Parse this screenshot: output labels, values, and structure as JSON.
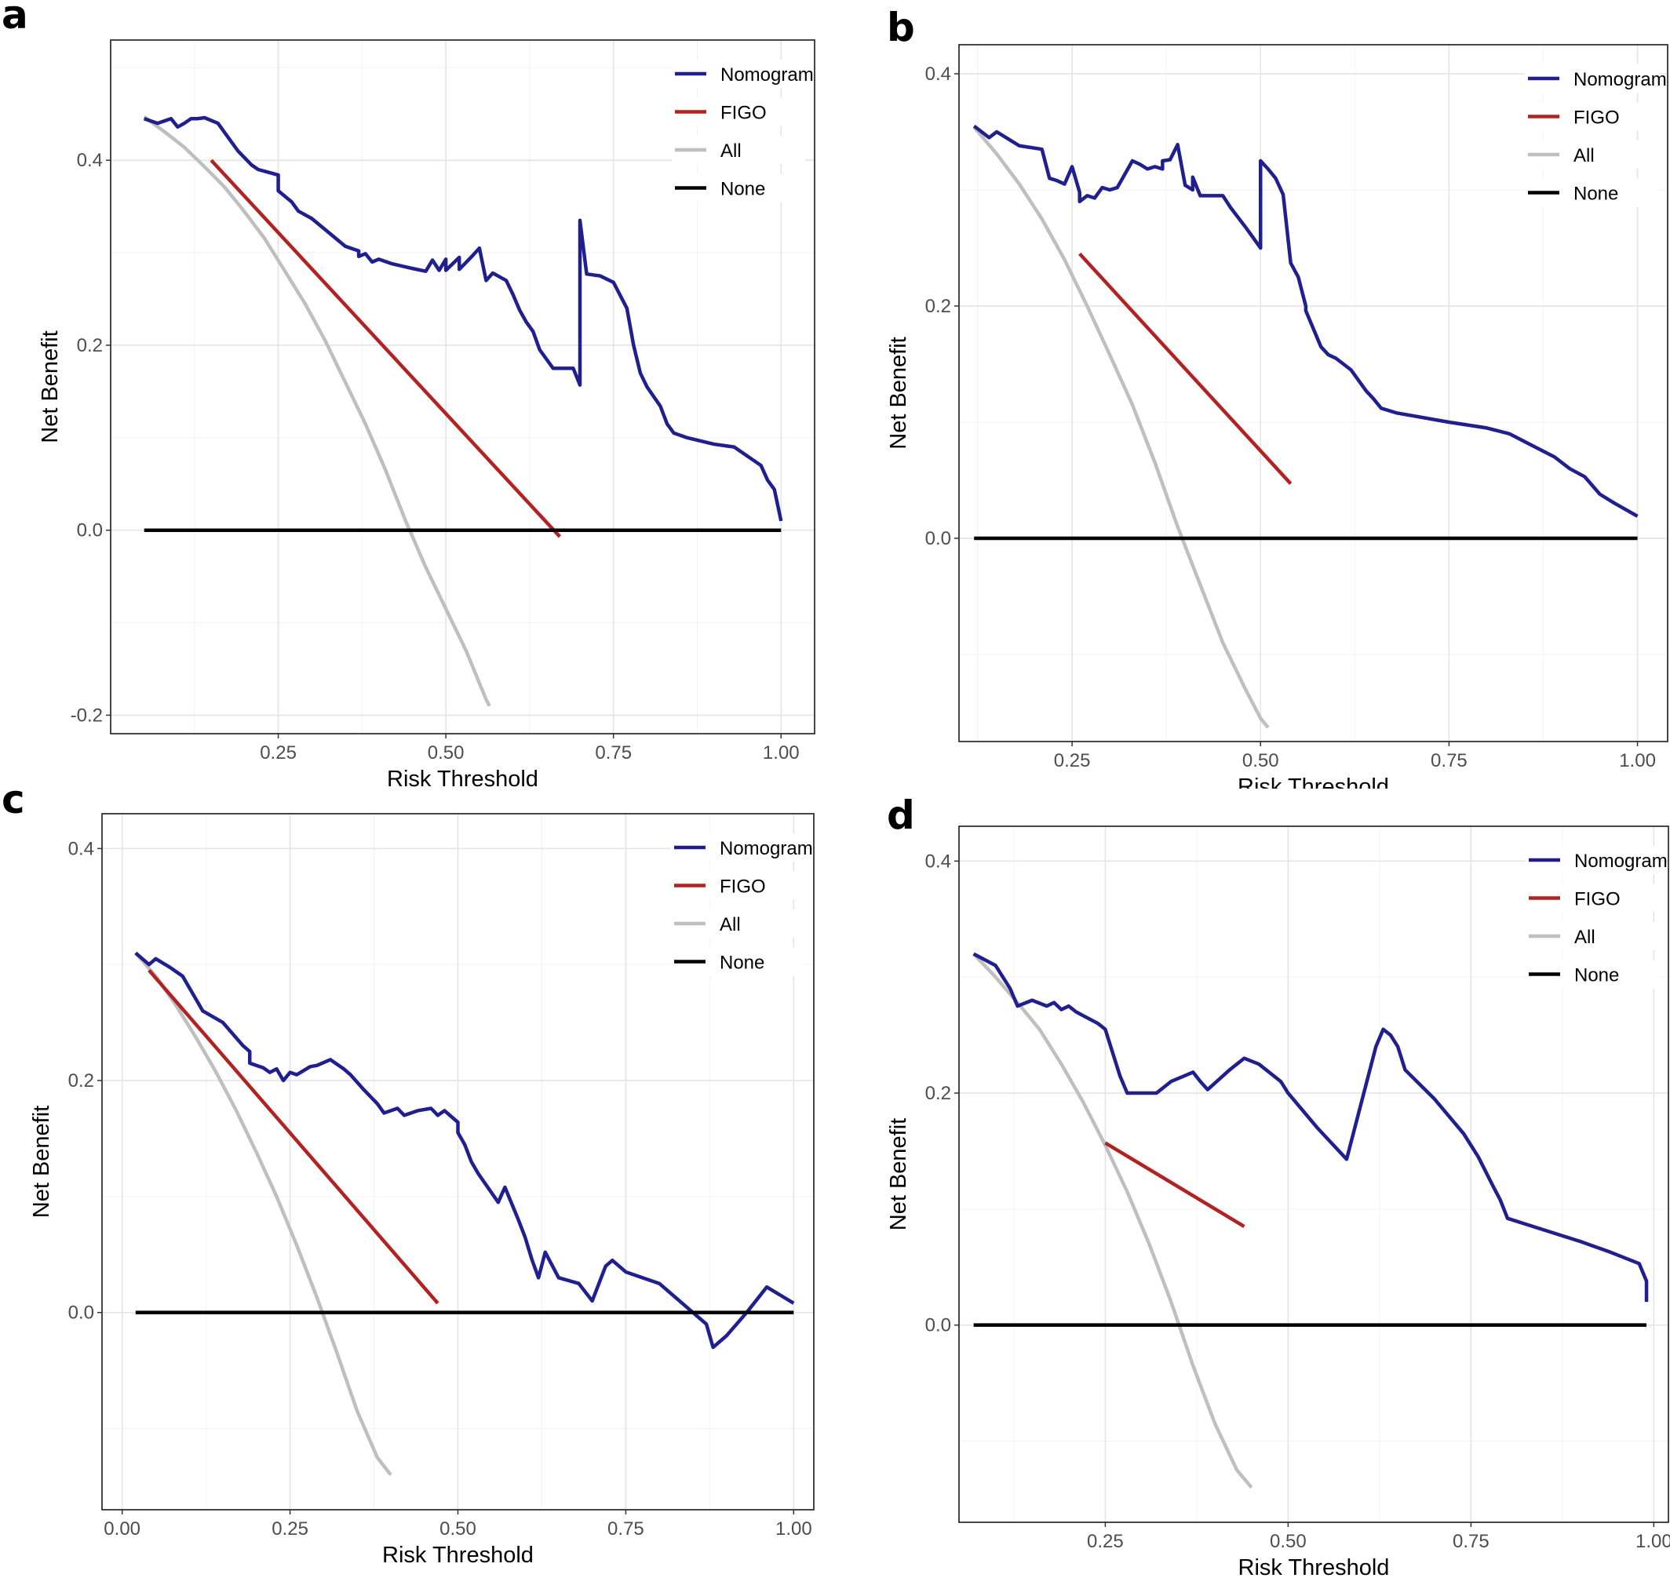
{
  "chart_data": [
    {
      "panel": "a",
      "type": "line",
      "xlabel": "Risk Threshold",
      "ylabel": "Net Benefit",
      "xlim": [
        0.0,
        1.05
      ],
      "ylim": [
        -0.22,
        0.53
      ],
      "xticks": [
        0.25,
        0.5,
        0.75,
        1.0
      ],
      "xtick_labels": [
        "0.25",
        "0.50",
        "0.75",
        "1.00"
      ],
      "yticks": [
        -0.2,
        0.0,
        0.2,
        0.4
      ],
      "ytick_labels": [
        "-0.2",
        "0.0",
        "0.2",
        "0.4"
      ],
      "legend_position": "top-right",
      "series": [
        {
          "name": "Nomogram",
          "color": "#1f1f8f",
          "x": [
            0.05,
            0.07,
            0.09,
            0.1,
            0.11,
            0.12,
            0.13,
            0.14,
            0.16,
            0.18,
            0.19,
            0.21,
            0.22,
            0.24,
            0.25,
            0.25,
            0.27,
            0.28,
            0.3,
            0.32,
            0.35,
            0.37,
            0.37,
            0.38,
            0.39,
            0.4,
            0.42,
            0.45,
            0.47,
            0.48,
            0.49,
            0.5,
            0.5,
            0.52,
            0.52,
            0.54,
            0.55,
            0.56,
            0.57,
            0.59,
            0.6,
            0.61,
            0.62,
            0.63,
            0.64,
            0.66,
            0.69,
            0.7,
            0.7,
            0.71,
            0.73,
            0.75,
            0.77,
            0.78,
            0.79,
            0.8,
            0.82,
            0.83,
            0.84,
            0.86,
            0.9,
            0.93,
            0.96,
            0.97,
            0.98,
            0.99,
            1.0
          ],
          "y": [
            0.445,
            0.44,
            0.445,
            0.436,
            0.44,
            0.445,
            0.445,
            0.446,
            0.44,
            0.42,
            0.41,
            0.395,
            0.39,
            0.386,
            0.384,
            0.367,
            0.355,
            0.345,
            0.337,
            0.325,
            0.307,
            0.302,
            0.296,
            0.299,
            0.29,
            0.293,
            0.288,
            0.283,
            0.28,
            0.292,
            0.281,
            0.293,
            0.281,
            0.295,
            0.282,
            0.297,
            0.305,
            0.27,
            0.278,
            0.27,
            0.255,
            0.238,
            0.225,
            0.215,
            0.195,
            0.175,
            0.175,
            0.157,
            0.335,
            0.277,
            0.275,
            0.268,
            0.24,
            0.2,
            0.17,
            0.155,
            0.134,
            0.115,
            0.105,
            0.1,
            0.093,
            0.09,
            0.075,
            0.07,
            0.054,
            0.044,
            0.01
          ]
        },
        {
          "name": "FIGO",
          "color": "#b22222",
          "x": [
            0.15,
            0.67
          ],
          "y": [
            0.4,
            -0.007
          ]
        },
        {
          "name": "All",
          "color": "#bfbfbf",
          "x": [
            0.05,
            0.08,
            0.11,
            0.14,
            0.17,
            0.2,
            0.23,
            0.26,
            0.29,
            0.32,
            0.35,
            0.38,
            0.41,
            0.44,
            0.47,
            0.5,
            0.53,
            0.56,
            0.565
          ],
          "y": [
            0.447,
            0.431,
            0.414,
            0.393,
            0.371,
            0.344,
            0.315,
            0.28,
            0.245,
            0.205,
            0.16,
            0.115,
            0.065,
            0.01,
            -0.04,
            -0.085,
            -0.13,
            -0.183,
            -0.19
          ]
        },
        {
          "name": "None",
          "color": "#000000",
          "x": [
            0.05,
            1.0
          ],
          "y": [
            0.0,
            0.0
          ]
        }
      ]
    },
    {
      "panel": "b",
      "type": "line",
      "xlabel": "Risk Threshold",
      "ylabel": "Net Benefit",
      "xlim": [
        0.1,
        1.04
      ],
      "ylim": [
        -0.175,
        0.425
      ],
      "xticks": [
        0.25,
        0.5,
        0.75,
        1.0
      ],
      "xtick_labels": [
        "0.25",
        "0.50",
        "0.75",
        "1.00"
      ],
      "yticks": [
        0.0,
        0.2,
        0.4
      ],
      "ytick_labels": [
        "0.0",
        "0.2",
        "0.4"
      ],
      "legend_position": "top-right",
      "series": [
        {
          "name": "Nomogram",
          "color": "#1f1f8f",
          "x": [
            0.12,
            0.14,
            0.15,
            0.17,
            0.18,
            0.21,
            0.22,
            0.23,
            0.24,
            0.25,
            0.26,
            0.26,
            0.27,
            0.28,
            0.29,
            0.3,
            0.31,
            0.33,
            0.34,
            0.35,
            0.36,
            0.37,
            0.37,
            0.38,
            0.39,
            0.4,
            0.41,
            0.41,
            0.42,
            0.43,
            0.45,
            0.46,
            0.48,
            0.5,
            0.5,
            0.51,
            0.52,
            0.53,
            0.54,
            0.55,
            0.56,
            0.56,
            0.58,
            0.59,
            0.6,
            0.62,
            0.64,
            0.65,
            0.66,
            0.68,
            0.75,
            0.8,
            0.83,
            0.86,
            0.89,
            0.91,
            0.93,
            0.95,
            0.97,
            1.0
          ],
          "y": [
            0.355,
            0.345,
            0.35,
            0.342,
            0.338,
            0.335,
            0.31,
            0.308,
            0.305,
            0.32,
            0.298,
            0.29,
            0.295,
            0.293,
            0.302,
            0.3,
            0.302,
            0.325,
            0.322,
            0.318,
            0.32,
            0.318,
            0.325,
            0.326,
            0.339,
            0.304,
            0.3,
            0.311,
            0.295,
            0.295,
            0.295,
            0.285,
            0.268,
            0.25,
            0.325,
            0.318,
            0.31,
            0.296,
            0.237,
            0.225,
            0.2,
            0.196,
            0.165,
            0.158,
            0.155,
            0.145,
            0.127,
            0.12,
            0.112,
            0.108,
            0.1,
            0.095,
            0.09,
            0.08,
            0.07,
            0.06,
            0.053,
            0.038,
            0.03,
            0.019
          ]
        },
        {
          "name": "FIGO",
          "color": "#b22222",
          "x": [
            0.26,
            0.54
          ],
          "y": [
            0.245,
            0.047
          ]
        },
        {
          "name": "All",
          "color": "#bfbfbf",
          "x": [
            0.12,
            0.15,
            0.18,
            0.21,
            0.24,
            0.27,
            0.3,
            0.33,
            0.36,
            0.39,
            0.42,
            0.45,
            0.48,
            0.5,
            0.51
          ],
          "y": [
            0.354,
            0.331,
            0.305,
            0.275,
            0.24,
            0.2,
            0.158,
            0.115,
            0.065,
            0.01,
            -0.04,
            -0.09,
            -0.13,
            -0.155,
            -0.163
          ]
        },
        {
          "name": "None",
          "color": "#000000",
          "x": [
            0.12,
            1.0
          ],
          "y": [
            0.0,
            0.0
          ]
        }
      ]
    },
    {
      "panel": "c",
      "type": "line",
      "xlabel": "Risk Threshold",
      "ylabel": "Net Benefit",
      "xlim": [
        -0.03,
        1.03
      ],
      "ylim": [
        -0.17,
        0.43
      ],
      "xticks": [
        0.0,
        0.25,
        0.5,
        0.75,
        1.0
      ],
      "xtick_labels": [
        "0.00",
        "0.25",
        "0.50",
        "0.75",
        "1.00"
      ],
      "yticks": [
        0.0,
        0.2,
        0.4
      ],
      "ytick_labels": [
        "0.0",
        "0.2",
        "0.4"
      ],
      "legend_position": "top-right",
      "series": [
        {
          "name": "Nomogram",
          "color": "#1f1f8f",
          "x": [
            0.02,
            0.03,
            0.04,
            0.05,
            0.07,
            0.09,
            0.1,
            0.12,
            0.15,
            0.18,
            0.19,
            0.19,
            0.21,
            0.22,
            0.23,
            0.24,
            0.25,
            0.26,
            0.28,
            0.29,
            0.31,
            0.33,
            0.34,
            0.36,
            0.38,
            0.39,
            0.41,
            0.42,
            0.44,
            0.46,
            0.47,
            0.48,
            0.5,
            0.5,
            0.51,
            0.52,
            0.53,
            0.56,
            0.57,
            0.59,
            0.6,
            0.61,
            0.62,
            0.63,
            0.65,
            0.68,
            0.7,
            0.72,
            0.73,
            0.75,
            0.8,
            0.85,
            0.87,
            0.88,
            0.9,
            0.93,
            0.96,
            0.98,
            1.0
          ],
          "y": [
            0.31,
            0.305,
            0.3,
            0.305,
            0.298,
            0.29,
            0.28,
            0.26,
            0.25,
            0.23,
            0.225,
            0.215,
            0.211,
            0.207,
            0.21,
            0.2,
            0.207,
            0.205,
            0.212,
            0.213,
            0.218,
            0.21,
            0.205,
            0.192,
            0.18,
            0.172,
            0.176,
            0.17,
            0.174,
            0.176,
            0.17,
            0.174,
            0.164,
            0.155,
            0.145,
            0.13,
            0.12,
            0.095,
            0.108,
            0.08,
            0.065,
            0.046,
            0.03,
            0.052,
            0.03,
            0.025,
            0.01,
            0.04,
            0.045,
            0.035,
            0.025,
            0.0,
            -0.01,
            -0.03,
            -0.02,
            0.0,
            0.022,
            0.015,
            0.008
          ]
        },
        {
          "name": "FIGO",
          "color": "#b22222",
          "x": [
            0.04,
            0.47
          ],
          "y": [
            0.295,
            0.008
          ]
        },
        {
          "name": "All",
          "color": "#bfbfbf",
          "x": [
            0.02,
            0.05,
            0.08,
            0.11,
            0.14,
            0.17,
            0.2,
            0.23,
            0.26,
            0.29,
            0.32,
            0.35,
            0.38,
            0.4
          ],
          "y": [
            0.31,
            0.29,
            0.265,
            0.237,
            0.207,
            0.174,
            0.138,
            0.1,
            0.058,
            0.013,
            -0.035,
            -0.085,
            -0.125,
            -0.14
          ]
        },
        {
          "name": "None",
          "color": "#000000",
          "x": [
            0.02,
            1.0
          ],
          "y": [
            0.0,
            0.0
          ]
        }
      ]
    },
    {
      "panel": "d",
      "type": "line",
      "xlabel": "Risk Threshold",
      "ylabel": "Net Benefit",
      "xlim": [
        0.05,
        1.02
      ],
      "ylim": [
        -0.17,
        0.43
      ],
      "xticks": [
        0.25,
        0.5,
        0.75,
        1.0
      ],
      "xtick_labels": [
        "0.25",
        "0.50",
        "0.75",
        "1.00"
      ],
      "yticks": [
        0.0,
        0.2,
        0.4
      ],
      "ytick_labels": [
        "0.0",
        "0.2",
        "0.4"
      ],
      "legend_position": "top-right",
      "series": [
        {
          "name": "Nomogram",
          "color": "#1f1f8f",
          "x": [
            0.07,
            0.1,
            0.12,
            0.13,
            0.15,
            0.17,
            0.18,
            0.19,
            0.2,
            0.21,
            0.24,
            0.25,
            0.26,
            0.27,
            0.28,
            0.32,
            0.34,
            0.37,
            0.38,
            0.39,
            0.42,
            0.44,
            0.46,
            0.49,
            0.5,
            0.54,
            0.58,
            0.62,
            0.63,
            0.64,
            0.65,
            0.66,
            0.7,
            0.74,
            0.76,
            0.78,
            0.79,
            0.8,
            0.82,
            0.85,
            0.9,
            0.94,
            0.98,
            0.99,
            0.99
          ],
          "y": [
            0.32,
            0.31,
            0.29,
            0.275,
            0.28,
            0.275,
            0.278,
            0.272,
            0.275,
            0.27,
            0.26,
            0.255,
            0.235,
            0.215,
            0.2,
            0.2,
            0.21,
            0.218,
            0.21,
            0.203,
            0.22,
            0.23,
            0.225,
            0.21,
            0.2,
            0.17,
            0.143,
            0.24,
            0.255,
            0.25,
            0.24,
            0.22,
            0.195,
            0.165,
            0.145,
            0.12,
            0.108,
            0.092,
            0.088,
            0.082,
            0.072,
            0.063,
            0.053,
            0.038,
            0.02
          ]
        },
        {
          "name": "FIGO",
          "color": "#b22222",
          "x": [
            0.25,
            0.44
          ],
          "y": [
            0.157,
            0.085
          ]
        },
        {
          "name": "All",
          "color": "#bfbfbf",
          "x": [
            0.07,
            0.1,
            0.13,
            0.16,
            0.19,
            0.22,
            0.25,
            0.28,
            0.31,
            0.34,
            0.37,
            0.4,
            0.43,
            0.45
          ],
          "y": [
            0.32,
            0.3,
            0.278,
            0.255,
            0.225,
            0.192,
            0.155,
            0.115,
            0.07,
            0.02,
            -0.035,
            -0.085,
            -0.125,
            -0.14
          ]
        },
        {
          "name": "None",
          "color": "#000000",
          "x": [
            0.07,
            0.99
          ],
          "y": [
            0.0,
            0.0
          ]
        }
      ]
    }
  ]
}
